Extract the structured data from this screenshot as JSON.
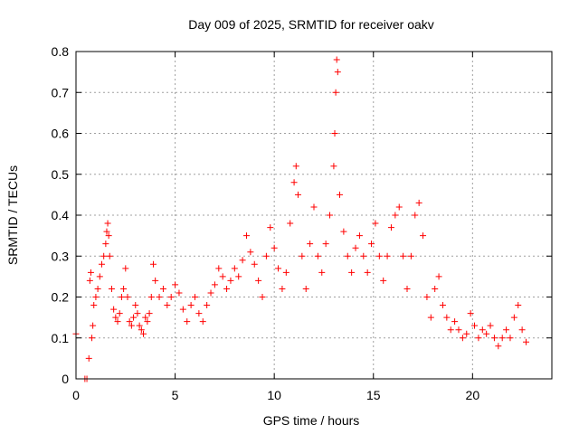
{
  "chart_data": {
    "type": "scatter",
    "title": "Day 009 of 2025, SRMTID for receiver oakv",
    "xlabel": "GPS time / hours",
    "ylabel": "SRMTID / TECUs",
    "xlim": [
      0,
      24
    ],
    "ylim": [
      0,
      0.8
    ],
    "xticks": [
      0,
      5,
      10,
      15,
      20
    ],
    "xtick_labels": [
      "0",
      "5",
      "10",
      "15",
      "20"
    ],
    "yticks": [
      0,
      0.1,
      0.2,
      0.3,
      0.4,
      0.5,
      0.6,
      0.7,
      0.8
    ],
    "ytick_labels": [
      "0",
      "0.1",
      "0.2",
      "0.3",
      "0.4",
      "0.5",
      "0.6",
      "0.7",
      "0.8"
    ],
    "grid": true,
    "marker": "plus",
    "color": "#ff0000",
    "series": [
      {
        "name": "SRMTID",
        "points": [
          [
            0.0,
            0.11
          ],
          [
            0.45,
            0.0
          ],
          [
            0.55,
            0.0
          ],
          [
            0.65,
            0.05
          ],
          [
            0.7,
            0.24
          ],
          [
            0.75,
            0.26
          ],
          [
            0.8,
            0.1
          ],
          [
            0.85,
            0.13
          ],
          [
            0.9,
            0.18
          ],
          [
            1.0,
            0.2
          ],
          [
            1.1,
            0.22
          ],
          [
            1.2,
            0.25
          ],
          [
            1.3,
            0.28
          ],
          [
            1.4,
            0.3
          ],
          [
            1.5,
            0.33
          ],
          [
            1.55,
            0.36
          ],
          [
            1.6,
            0.38
          ],
          [
            1.65,
            0.35
          ],
          [
            1.7,
            0.3
          ],
          [
            1.8,
            0.22
          ],
          [
            1.9,
            0.17
          ],
          [
            2.0,
            0.15
          ],
          [
            2.1,
            0.14
          ],
          [
            2.2,
            0.16
          ],
          [
            2.3,
            0.2
          ],
          [
            2.4,
            0.22
          ],
          [
            2.5,
            0.27
          ],
          [
            2.6,
            0.2
          ],
          [
            2.7,
            0.14
          ],
          [
            2.8,
            0.13
          ],
          [
            2.9,
            0.15
          ],
          [
            3.0,
            0.18
          ],
          [
            3.1,
            0.16
          ],
          [
            3.2,
            0.13
          ],
          [
            3.3,
            0.12
          ],
          [
            3.4,
            0.11
          ],
          [
            3.5,
            0.15
          ],
          [
            3.6,
            0.14
          ],
          [
            3.7,
            0.16
          ],
          [
            3.8,
            0.2
          ],
          [
            3.9,
            0.28
          ],
          [
            4.0,
            0.24
          ],
          [
            4.2,
            0.2
          ],
          [
            4.4,
            0.22
          ],
          [
            4.6,
            0.18
          ],
          [
            4.8,
            0.2
          ],
          [
            5.0,
            0.23
          ],
          [
            5.2,
            0.21
          ],
          [
            5.4,
            0.17
          ],
          [
            5.6,
            0.14
          ],
          [
            5.8,
            0.18
          ],
          [
            6.0,
            0.2
          ],
          [
            6.2,
            0.16
          ],
          [
            6.4,
            0.14
          ],
          [
            6.6,
            0.18
          ],
          [
            6.8,
            0.21
          ],
          [
            7.0,
            0.23
          ],
          [
            7.2,
            0.27
          ],
          [
            7.4,
            0.25
          ],
          [
            7.6,
            0.22
          ],
          [
            7.8,
            0.24
          ],
          [
            8.0,
            0.27
          ],
          [
            8.2,
            0.25
          ],
          [
            8.4,
            0.29
          ],
          [
            8.6,
            0.35
          ],
          [
            8.8,
            0.31
          ],
          [
            9.0,
            0.28
          ],
          [
            9.2,
            0.24
          ],
          [
            9.4,
            0.2
          ],
          [
            9.6,
            0.3
          ],
          [
            9.8,
            0.37
          ],
          [
            10.0,
            0.32
          ],
          [
            10.2,
            0.27
          ],
          [
            10.4,
            0.22
          ],
          [
            10.6,
            0.26
          ],
          [
            10.8,
            0.38
          ],
          [
            11.0,
            0.48
          ],
          [
            11.1,
            0.52
          ],
          [
            11.2,
            0.45
          ],
          [
            11.4,
            0.3
          ],
          [
            11.6,
            0.22
          ],
          [
            11.8,
            0.33
          ],
          [
            12.0,
            0.42
          ],
          [
            12.2,
            0.3
          ],
          [
            12.4,
            0.26
          ],
          [
            12.6,
            0.33
          ],
          [
            12.8,
            0.4
          ],
          [
            13.0,
            0.52
          ],
          [
            13.05,
            0.6
          ],
          [
            13.1,
            0.7
          ],
          [
            13.15,
            0.78
          ],
          [
            13.2,
            0.75
          ],
          [
            13.3,
            0.45
          ],
          [
            13.5,
            0.36
          ],
          [
            13.7,
            0.3
          ],
          [
            13.9,
            0.26
          ],
          [
            14.1,
            0.32
          ],
          [
            14.3,
            0.35
          ],
          [
            14.5,
            0.3
          ],
          [
            14.7,
            0.26
          ],
          [
            14.9,
            0.33
          ],
          [
            15.1,
            0.38
          ],
          [
            15.3,
            0.3
          ],
          [
            15.5,
            0.24
          ],
          [
            15.7,
            0.3
          ],
          [
            15.9,
            0.37
          ],
          [
            16.1,
            0.4
          ],
          [
            16.3,
            0.42
          ],
          [
            16.5,
            0.3
          ],
          [
            16.7,
            0.22
          ],
          [
            16.9,
            0.3
          ],
          [
            17.1,
            0.4
          ],
          [
            17.3,
            0.43
          ],
          [
            17.5,
            0.35
          ],
          [
            17.7,
            0.2
          ],
          [
            17.9,
            0.15
          ],
          [
            18.1,
            0.22
          ],
          [
            18.3,
            0.25
          ],
          [
            18.5,
            0.18
          ],
          [
            18.7,
            0.15
          ],
          [
            18.9,
            0.12
          ],
          [
            19.1,
            0.14
          ],
          [
            19.3,
            0.12
          ],
          [
            19.5,
            0.1
          ],
          [
            19.7,
            0.11
          ],
          [
            19.9,
            0.16
          ],
          [
            20.1,
            0.13
          ],
          [
            20.3,
            0.1
          ],
          [
            20.5,
            0.12
          ],
          [
            20.7,
            0.11
          ],
          [
            20.9,
            0.13
          ],
          [
            21.1,
            0.1
          ],
          [
            21.3,
            0.08
          ],
          [
            21.5,
            0.1
          ],
          [
            21.7,
            0.12
          ],
          [
            21.9,
            0.1
          ],
          [
            22.1,
            0.15
          ],
          [
            22.3,
            0.18
          ],
          [
            22.5,
            0.12
          ],
          [
            22.7,
            0.09
          ]
        ]
      }
    ]
  }
}
